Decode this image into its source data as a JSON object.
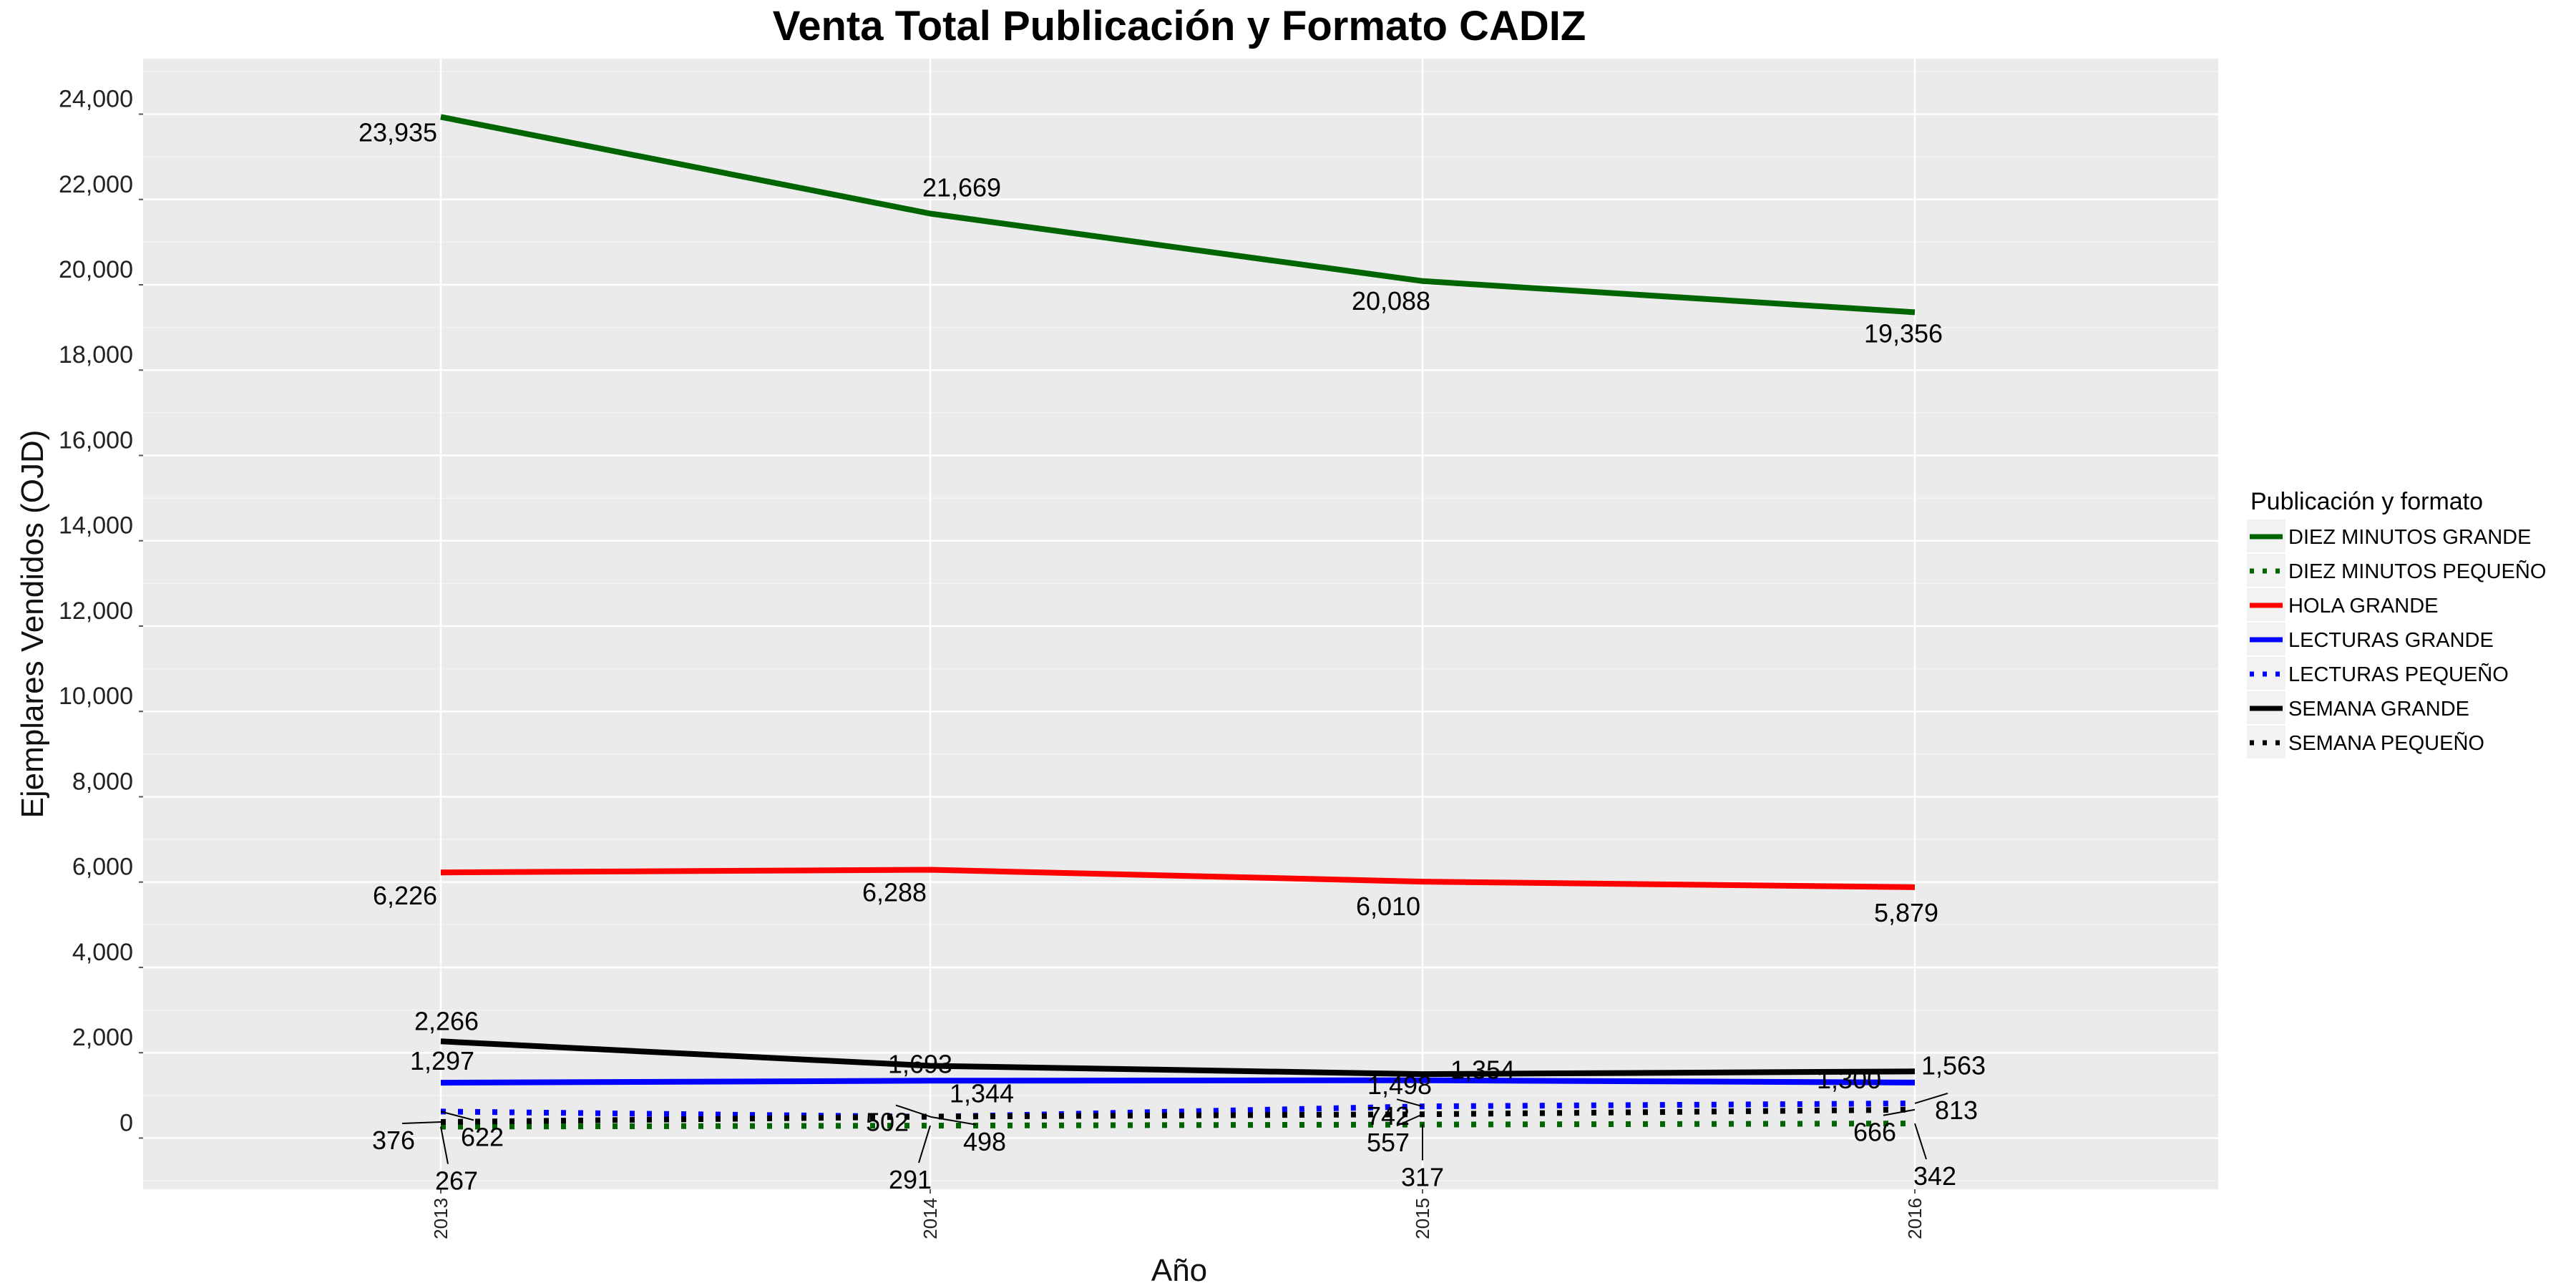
{
  "chart_data": {
    "type": "line",
    "title": "Venta Total Publicación y Formato  CADIZ",
    "xlabel": "Año",
    "ylabel": "Ejemplares Vendidos (OJD)",
    "x": [
      "2013",
      "2014",
      "2015",
      "2016"
    ],
    "ylim": [
      -1200,
      25300
    ],
    "yticks": [
      0,
      2000,
      4000,
      6000,
      8000,
      10000,
      12000,
      14000,
      16000,
      18000,
      20000,
      22000,
      24000
    ],
    "ytick_labels": [
      "0",
      "2,000",
      "4,000",
      "6,000",
      "8,000",
      "10,000",
      "12,000",
      "14,000",
      "16,000",
      "18,000",
      "20,000",
      "22,000",
      "24,000"
    ],
    "grid": true,
    "legend_position": "right",
    "legend_title": "Publicación y formato",
    "series": [
      {
        "name": "DIEZ MINUTOS GRANDE",
        "values": [
          23935,
          21669,
          20088,
          19356
        ],
        "labels": [
          "23,935",
          "21,669",
          "20,088",
          "19,356"
        ],
        "color": "#006400",
        "dash": "solid"
      },
      {
        "name": "DIEZ MINUTOS PEQUEÑO",
        "values": [
          267,
          291,
          317,
          342
        ],
        "labels": [
          "267",
          "291",
          "317",
          "342"
        ],
        "color": "#006400",
        "dash": "dotted"
      },
      {
        "name": "HOLA GRANDE",
        "values": [
          6226,
          6288,
          6010,
          5879
        ],
        "labels": [
          "6,226",
          "6,288",
          "6,010",
          "5,879"
        ],
        "color": "#ff0000",
        "dash": "solid"
      },
      {
        "name": "LECTURAS GRANDE",
        "values": [
          1297,
          1344,
          1354,
          1300
        ],
        "labels": [
          "1,297",
          "1,344",
          "1,354",
          "1,300"
        ],
        "color": "#0000ff",
        "dash": "solid"
      },
      {
        "name": "LECTURAS PEQUEÑO",
        "values": [
          622,
          498,
          742,
          813
        ],
        "labels": [
          "622",
          "498",
          "742",
          "813"
        ],
        "color": "#0000ff",
        "dash": "dotted"
      },
      {
        "name": "SEMANA GRANDE",
        "values": [
          2266,
          1693,
          1498,
          1563
        ],
        "labels": [
          "2,266",
          "1,693",
          "1,498",
          "1,563"
        ],
        "color": "#000000",
        "dash": "solid"
      },
      {
        "name": "SEMANA PEQUEÑO",
        "values": [
          376,
          502,
          557,
          666
        ],
        "labels": [
          "376",
          "502",
          "557",
          "666"
        ],
        "color": "#000000",
        "dash": "dotted"
      }
    ]
  }
}
